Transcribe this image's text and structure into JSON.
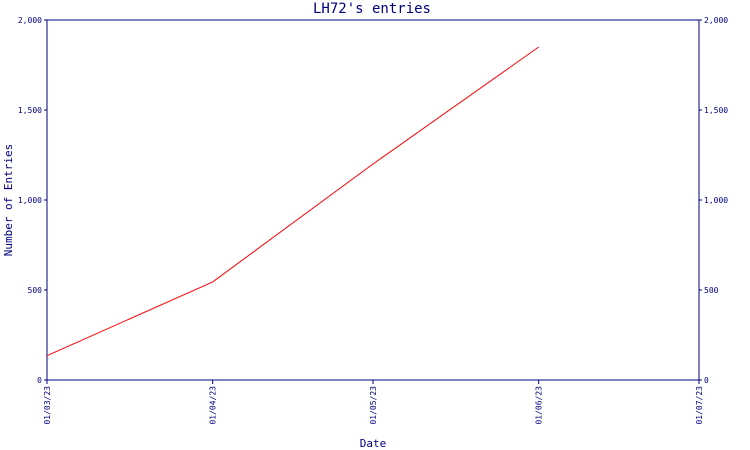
{
  "chart_data": {
    "type": "line",
    "title": "LH72's entries",
    "xlabel": "Date",
    "ylabel": "Number of Entries",
    "x_ticks": [
      "01/03/23",
      "01/04/23",
      "01/05/23",
      "01/06/23",
      "01/07/23"
    ],
    "y_ticks": [
      "0",
      "500",
      "1,000",
      "1,500",
      "2,000"
    ],
    "ylim": [
      0,
      2000
    ],
    "xlim": [
      "01/03/23",
      "01/07/23"
    ],
    "grid": false,
    "series": [
      {
        "color": "#ff0000",
        "x": [
          "01/03/23",
          "01/04/23",
          "01/05/23",
          "01/06/23"
        ],
        "y": [
          135,
          545,
          1200,
          1850
        ]
      }
    ]
  },
  "colors": {
    "axis": "#000080",
    "text": "#000080",
    "line": "#ff0000"
  }
}
